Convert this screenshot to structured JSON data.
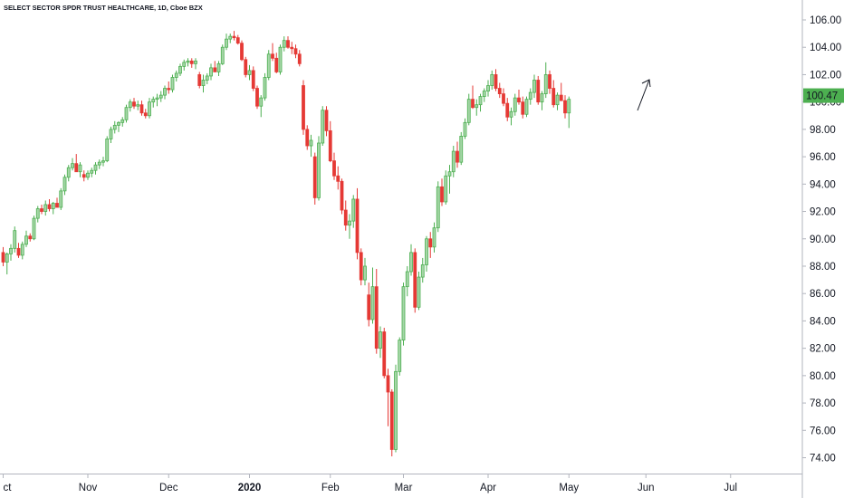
{
  "chart_data": {
    "type": "candlestick",
    "title": "SELECT SECTOR SPDR TRUST HEALTHCARE, 1D, Cboe BZX",
    "y_axis": {
      "position": "right",
      "range": [
        73,
        107
      ],
      "ticks": [
        "106.00",
        "104.00",
        "102.00",
        "100.00",
        "98.00",
        "96.00",
        "94.00",
        "92.00",
        "90.00",
        "88.00",
        "86.00",
        "84.00",
        "82.00",
        "80.00",
        "78.00",
        "76.00",
        "74.00"
      ]
    },
    "x_axis": {
      "ticks": [
        {
          "label": "ct",
          "index": 0,
          "bold": false
        },
        {
          "label": "Nov",
          "index": 22,
          "bold": false
        },
        {
          "label": "Dec",
          "index": 43,
          "bold": false
        },
        {
          "label": "2020",
          "index": 64,
          "bold": true
        },
        {
          "label": "Feb",
          "index": 85,
          "bold": false
        },
        {
          "label": "Mar",
          "index": 104,
          "bold": false
        },
        {
          "label": "Apr",
          "index": 126,
          "bold": false
        },
        {
          "label": "May",
          "index": 147,
          "bold": false
        },
        {
          "label": "Jun",
          "index": 167,
          "bold": false
        },
        {
          "label": "Jul",
          "index": 189,
          "bold": false
        }
      ]
    },
    "current_price": {
      "value": 100.47,
      "label": "100.47",
      "color": "#4caf50"
    },
    "colors": {
      "up": "#4caf50",
      "up_fill": "#a5d6a7",
      "down": "#e53935"
    },
    "candles": [
      [
        89.0,
        89.4,
        88.0,
        88.3
      ],
      [
        88.3,
        89.0,
        87.4,
        88.9
      ],
      [
        88.9,
        89.6,
        88.4,
        89.3
      ],
      [
        89.3,
        90.9,
        89.0,
        90.6
      ],
      [
        89.3,
        89.7,
        88.6,
        88.8
      ],
      [
        88.8,
        89.8,
        88.5,
        89.6
      ],
      [
        89.6,
        90.6,
        89.4,
        90.2
      ],
      [
        90.2,
        90.4,
        89.8,
        90.0
      ],
      [
        90.0,
        91.7,
        89.9,
        91.5
      ],
      [
        91.5,
        92.4,
        91.2,
        92.2
      ],
      [
        92.2,
        92.5,
        91.8,
        92.0
      ],
      [
        92.0,
        92.8,
        91.7,
        92.5
      ],
      [
        92.5,
        92.9,
        92.0,
        92.2
      ],
      [
        92.2,
        92.7,
        91.8,
        92.6
      ],
      [
        92.6,
        93.0,
        92.3,
        92.3
      ],
      [
        92.3,
        93.7,
        92.1,
        93.5
      ],
      [
        93.5,
        94.7,
        93.2,
        94.5
      ],
      [
        94.5,
        95.4,
        94.2,
        95.2
      ],
      [
        95.2,
        95.9,
        95.0,
        95.5
      ],
      [
        95.5,
        96.2,
        95.1,
        94.9
      ],
      [
        94.9,
        95.6,
        94.5,
        95.4
      ],
      [
        94.7,
        95.0,
        94.2,
        94.5
      ],
      [
        94.5,
        95.0,
        94.3,
        94.8
      ],
      [
        94.8,
        95.2,
        94.5,
        95.0
      ],
      [
        95.0,
        95.6,
        94.7,
        95.4
      ],
      [
        95.4,
        95.8,
        95.1,
        95.6
      ],
      [
        95.6,
        96.0,
        95.3,
        95.7
      ],
      [
        95.7,
        97.5,
        95.6,
        97.3
      ],
      [
        97.3,
        98.2,
        97.0,
        98.0
      ],
      [
        98.0,
        98.6,
        97.7,
        98.3
      ],
      [
        98.3,
        98.6,
        97.8,
        98.5
      ],
      [
        98.5,
        98.9,
        98.2,
        98.7
      ],
      [
        98.7,
        99.8,
        98.5,
        99.6
      ],
      [
        99.6,
        100.2,
        99.3,
        100.0
      ],
      [
        100.0,
        100.3,
        99.5,
        99.7
      ],
      [
        99.7,
        100.1,
        99.4,
        99.8
      ],
      [
        99.8,
        100.1,
        99.0,
        99.2
      ],
      [
        99.2,
        99.5,
        98.8,
        99.0
      ],
      [
        99.0,
        100.3,
        98.8,
        100.0
      ],
      [
        100.0,
        100.4,
        99.6,
        100.2
      ],
      [
        100.2,
        100.6,
        99.7,
        100.3
      ],
      [
        100.3,
        100.8,
        100.0,
        100.5
      ],
      [
        100.5,
        101.2,
        100.2,
        101.0
      ],
      [
        101.0,
        101.5,
        100.6,
        100.9
      ],
      [
        100.9,
        102.0,
        100.7,
        101.8
      ],
      [
        101.8,
        102.3,
        101.5,
        102.1
      ],
      [
        102.1,
        102.8,
        101.9,
        102.6
      ],
      [
        102.6,
        103.1,
        102.3,
        102.9
      ],
      [
        102.9,
        103.2,
        102.6,
        103.0
      ],
      [
        103.0,
        103.2,
        102.5,
        102.8
      ],
      [
        102.8,
        103.2,
        102.4,
        103.0
      ],
      [
        102.0,
        102.2,
        101.0,
        101.2
      ],
      [
        101.2,
        102.0,
        100.7,
        101.6
      ],
      [
        101.6,
        102.1,
        101.3,
        101.9
      ],
      [
        101.9,
        102.8,
        101.6,
        102.5
      ],
      [
        102.5,
        103.0,
        102.2,
        102.2
      ],
      [
        102.2,
        103.0,
        101.9,
        102.8
      ],
      [
        102.8,
        104.2,
        102.7,
        104.0
      ],
      [
        104.0,
        105.0,
        103.8,
        104.6
      ],
      [
        104.6,
        105.0,
        104.3,
        104.8
      ],
      [
        104.8,
        105.2,
        104.5,
        104.7
      ],
      [
        104.7,
        104.9,
        104.2,
        104.3
      ],
      [
        104.3,
        104.5,
        103.0,
        103.1
      ],
      [
        103.1,
        103.3,
        101.8,
        102.0
      ],
      [
        102.0,
        102.7,
        101.6,
        102.3
      ],
      [
        102.3,
        102.6,
        100.8,
        101.0
      ],
      [
        101.0,
        101.2,
        99.5,
        99.7
      ],
      [
        99.7,
        100.5,
        98.9,
        100.3
      ],
      [
        100.3,
        102.1,
        100.1,
        101.8
      ],
      [
        101.8,
        103.8,
        101.6,
        103.5
      ],
      [
        103.5,
        104.3,
        103.0,
        103.2
      ],
      [
        103.2,
        103.6,
        102.1,
        102.2
      ],
      [
        102.2,
        104.2,
        102.0,
        104.0
      ],
      [
        104.0,
        104.8,
        103.7,
        104.5
      ],
      [
        104.5,
        104.8,
        103.9,
        104.0
      ],
      [
        104.0,
        104.4,
        103.5,
        103.9
      ],
      [
        103.9,
        104.2,
        103.2,
        103.5
      ],
      [
        103.5,
        103.8,
        102.6,
        102.8
      ],
      [
        101.2,
        101.6,
        97.6,
        98.0
      ],
      [
        98.0,
        98.3,
        96.5,
        96.8
      ],
      [
        96.8,
        97.6,
        96.0,
        97.2
      ],
      [
        96.0,
        96.3,
        92.5,
        93.0
      ],
      [
        93.0,
        97.5,
        92.8,
        97.0
      ],
      [
        97.0,
        99.7,
        96.8,
        99.4
      ],
      [
        99.4,
        99.7,
        97.5,
        97.9
      ],
      [
        97.9,
        98.6,
        95.6,
        95.7
      ],
      [
        95.7,
        96.3,
        94.3,
        94.6
      ],
      [
        94.6,
        95.3,
        93.6,
        94.2
      ],
      [
        94.2,
        94.4,
        91.8,
        92.1
      ],
      [
        92.1,
        92.8,
        90.6,
        91.0
      ],
      [
        91.0,
        91.8,
        90.0,
        91.3
      ],
      [
        91.3,
        93.2,
        90.8,
        92.9
      ],
      [
        92.9,
        93.7,
        88.5,
        89.0
      ],
      [
        89.0,
        89.3,
        86.6,
        87.0
      ],
      [
        87.0,
        88.6,
        86.6,
        88.0
      ],
      [
        85.9,
        86.8,
        83.6,
        84.1
      ],
      [
        84.1,
        87.9,
        83.8,
        86.5
      ],
      [
        86.5,
        87.8,
        81.6,
        82.0
      ],
      [
        82.0,
        83.6,
        81.3,
        83.2
      ],
      [
        83.2,
        83.5,
        79.8,
        80.0
      ],
      [
        80.0,
        80.5,
        76.3,
        78.8
      ],
      [
        78.8,
        79.0,
        74.1,
        74.6
      ],
      [
        74.6,
        80.8,
        74.4,
        80.3
      ],
      [
        80.3,
        82.8,
        80.0,
        82.6
      ],
      [
        82.6,
        86.8,
        82.2,
        86.5
      ],
      [
        86.5,
        88.0,
        85.8,
        87.6
      ],
      [
        87.6,
        89.6,
        87.3,
        89.0
      ],
      [
        89.0,
        89.3,
        84.6,
        85.0
      ],
      [
        85.0,
        87.6,
        84.8,
        87.2
      ],
      [
        87.2,
        88.6,
        86.8,
        88.1
      ],
      [
        88.1,
        90.2,
        87.6,
        90.0
      ],
      [
        90.0,
        90.5,
        88.6,
        89.4
      ],
      [
        89.4,
        91.2,
        89.0,
        90.8
      ],
      [
        90.8,
        94.2,
        90.5,
        93.8
      ],
      [
        93.8,
        94.4,
        92.4,
        92.7
      ],
      [
        92.7,
        95.0,
        92.5,
        94.6
      ],
      [
        94.6,
        95.4,
        93.3,
        94.9
      ],
      [
        94.9,
        96.8,
        94.5,
        96.4
      ],
      [
        96.4,
        97.1,
        95.2,
        95.6
      ],
      [
        95.6,
        97.8,
        95.4,
        97.5
      ],
      [
        97.5,
        98.8,
        97.3,
        98.5
      ],
      [
        98.5,
        100.6,
        98.3,
        100.2
      ],
      [
        100.2,
        101.2,
        99.5,
        99.6
      ],
      [
        99.6,
        100.2,
        99.0,
        99.8
      ],
      [
        99.8,
        100.6,
        99.3,
        100.4
      ],
      [
        100.4,
        101.0,
        100.0,
        100.8
      ],
      [
        100.8,
        101.6,
        100.4,
        101.2
      ],
      [
        101.2,
        102.3,
        100.9,
        102.0
      ],
      [
        102.0,
        102.4,
        100.8,
        101.0
      ],
      [
        101.0,
        101.4,
        100.3,
        100.6
      ],
      [
        100.6,
        101.0,
        99.7,
        99.9
      ],
      [
        99.9,
        100.3,
        98.6,
        98.9
      ],
      [
        98.9,
        99.6,
        98.3,
        99.3
      ],
      [
        99.3,
        100.6,
        99.0,
        100.3
      ],
      [
        100.3,
        100.9,
        99.8,
        100.0
      ],
      [
        100.0,
        100.4,
        98.8,
        99.1
      ],
      [
        99.1,
        100.4,
        98.9,
        100.2
      ],
      [
        100.2,
        101.0,
        99.8,
        100.7
      ],
      [
        100.7,
        102.0,
        100.3,
        101.6
      ],
      [
        101.6,
        101.9,
        99.8,
        100.0
      ],
      [
        100.0,
        100.8,
        99.4,
        100.6
      ],
      [
        100.6,
        102.9,
        100.3,
        102.0
      ],
      [
        102.0,
        102.3,
        100.6,
        101.0
      ],
      [
        101.0,
        101.6,
        99.6,
        99.8
      ],
      [
        99.8,
        100.7,
        99.4,
        100.5
      ],
      [
        100.5,
        101.4,
        100.1,
        100.1
      ],
      [
        100.1,
        100.5,
        98.8,
        99.2
      ],
      [
        99.2,
        100.4,
        98.1,
        100.2
      ]
    ]
  }
}
